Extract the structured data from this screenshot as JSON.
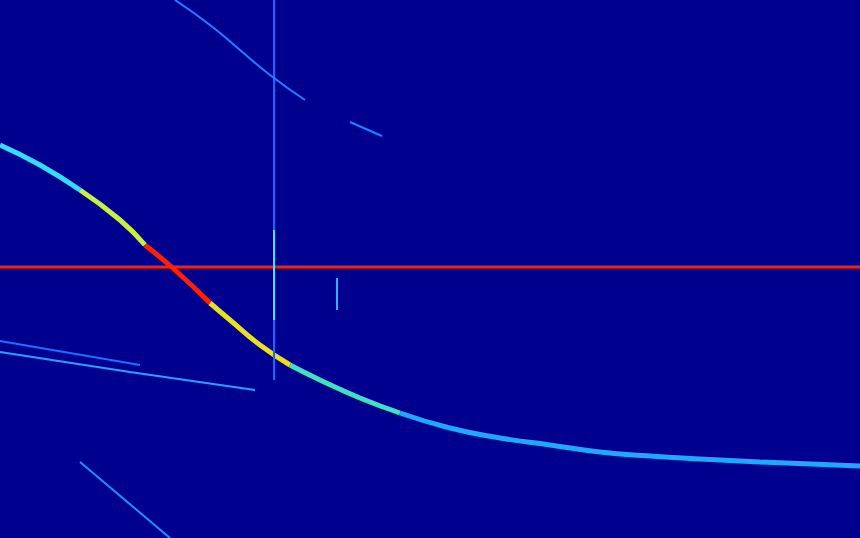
{
  "chart_data": {
    "type": "line",
    "xlim": [
      0,
      860
    ],
    "ylim": [
      0,
      538
    ],
    "grid": false,
    "tick_labels": false,
    "series": [
      {
        "color": "#33ddff",
        "x": [
          0,
          40,
          80
        ],
        "values": [
          393,
          373,
          348
        ]
      },
      {
        "color": "#c8f040",
        "x": [
          80,
          120,
          145
        ],
        "values": [
          348,
          318,
          293
        ]
      },
      {
        "color": "#ff2000",
        "x": [
          145,
          175,
          210
        ],
        "values": [
          293,
          268,
          235
        ]
      },
      {
        "color": "#e8e020",
        "x": [
          210,
          230,
          260,
          290
        ],
        "values": [
          235,
          218,
          193,
          173
        ]
      },
      {
        "color": "#40e0c0",
        "x": [
          290,
          320,
          360,
          400
        ],
        "values": [
          173,
          158,
          140,
          125
        ]
      },
      {
        "color": "#20a8ff",
        "x": [
          400,
          450,
          500,
          550,
          600,
          650,
          700,
          760,
          860
        ],
        "values": [
          125,
          110,
          100,
          93,
          86,
          82,
          79,
          76,
          72
        ]
      },
      {
        "color": "#ff2000",
        "x": [
          0,
          860
        ],
        "values": [
          271,
          271
        ]
      },
      {
        "color": "#1e64ff",
        "x": [
          274,
          274
        ],
        "values": [
          538,
          158
        ]
      },
      {
        "color": "#40e8ff",
        "x": [
          274,
          274
        ],
        "values": [
          308,
          218
        ]
      },
      {
        "color": "#2080ff",
        "x": [
          175,
          210,
          240,
          270,
          305
        ],
        "values": [
          538,
          513,
          488,
          463,
          438
        ]
      },
      {
        "color": "#2080ff",
        "x": [
          350,
          382
        ],
        "values": [
          416,
          402
        ]
      },
      {
        "color": "#1e70ff",
        "x": [
          0,
          140
        ],
        "values": [
          197,
          173
        ]
      },
      {
        "color": "#2aa0ff",
        "x": [
          0,
          130,
          255
        ],
        "values": [
          186,
          166,
          148
        ]
      },
      {
        "color": "#2090ff",
        "x": [
          80,
          170
        ],
        "values": [
          76,
          0
        ]
      },
      {
        "color": "#30b0ff",
        "x": [
          337,
          337
        ],
        "values": [
          260,
          228
        ]
      }
    ]
  }
}
